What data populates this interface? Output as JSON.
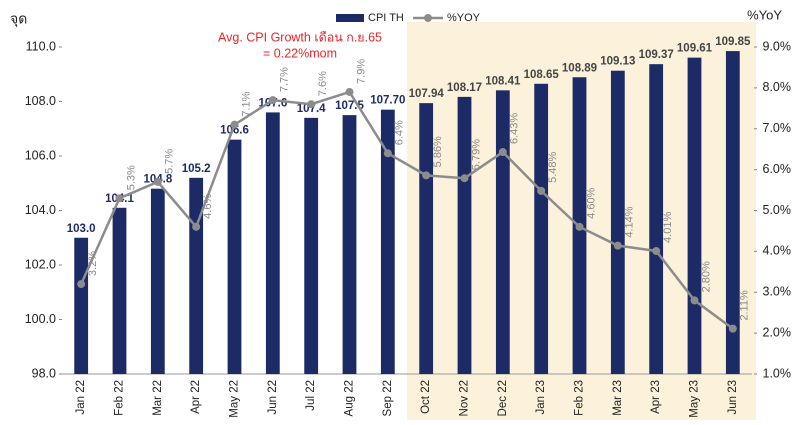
{
  "chart_data": {
    "type": "bar_line",
    "y_axis_label": "จุด",
    "y2_axis_label": "%YoY",
    "annotation": [
      "Avg. CPI Growth เดือน ก.ย.65",
      "= 0.22%mom"
    ],
    "categories": [
      "Jan 22",
      "Feb 22",
      "Mar 22",
      "Apr 22",
      "May 22",
      "Jun 22",
      "Jul 22",
      "Aug 22",
      "Sep 22",
      "Oct 22",
      "Nov 22",
      "Dec 22",
      "Jan 23",
      "Feb 23",
      "Mar 23",
      "Apr 23",
      "May 23",
      "Jun 23"
    ],
    "series": [
      {
        "name": "CPI TH",
        "type": "bar",
        "color": "#1c2b66",
        "values": [
          103.0,
          104.1,
          104.8,
          105.2,
          106.6,
          107.6,
          107.4,
          107.5,
          107.7,
          107.94,
          108.17,
          108.41,
          108.65,
          108.89,
          109.13,
          109.37,
          109.61,
          109.85
        ],
        "value_labels": [
          "103.0",
          "104.1",
          "104.8",
          "105.2",
          "106.6",
          "107.6",
          "107.4",
          "107.5",
          "107.70",
          "107.94",
          "108.17",
          "108.41",
          "108.65",
          "108.89",
          "109.13",
          "109.37",
          "109.61",
          "109.85"
        ]
      },
      {
        "name": "%YOY",
        "type": "line",
        "axis": "y2",
        "color": "#8c8c8c",
        "values": [
          3.2,
          5.3,
          5.7,
          4.6,
          7.1,
          7.7,
          7.6,
          7.9,
          6.4,
          5.86,
          5.79,
          6.43,
          5.48,
          4.6,
          4.14,
          4.01,
          2.8,
          2.11
        ],
        "value_labels": [
          "3.2%",
          "5.3%",
          "5.7%",
          "4.6%",
          "7.1%",
          "7.7%",
          "7.6%",
          "7.9%",
          "6.4%",
          "5.86%",
          "5.79%",
          "6.43%",
          "5.48%",
          "4.60%",
          "4.14%",
          "4.01%",
          "2.80%",
          "2.11%"
        ]
      }
    ],
    "ylim": [
      98,
      110
    ],
    "yticks": [
      {
        "value": 98,
        "label": "98.0"
      },
      {
        "value": 100,
        "label": "100.0"
      },
      {
        "value": 102,
        "label": "102.0"
      },
      {
        "value": 104,
        "label": "104.0"
      },
      {
        "value": 106,
        "label": "106.0"
      },
      {
        "value": 108,
        "label": "108.0"
      },
      {
        "value": 110,
        "label": "110.0"
      }
    ],
    "y2lim": [
      1,
      9
    ],
    "y2ticks": [
      {
        "value": 1,
        "label": "1.0%"
      },
      {
        "value": 2,
        "label": "2.0%"
      },
      {
        "value": 3,
        "label": "3.0%"
      },
      {
        "value": 4,
        "label": "4.0%"
      },
      {
        "value": 5,
        "label": "5.0%"
      },
      {
        "value": 6,
        "label": "6.0%"
      },
      {
        "value": 7,
        "label": "7.0%"
      },
      {
        "value": 8,
        "label": "8.0%"
      },
      {
        "value": 9,
        "label": "9.0%"
      }
    ],
    "highlight": {
      "from": "Oct 22",
      "to": "Jun 23",
      "color": "#fcf2dc"
    }
  }
}
